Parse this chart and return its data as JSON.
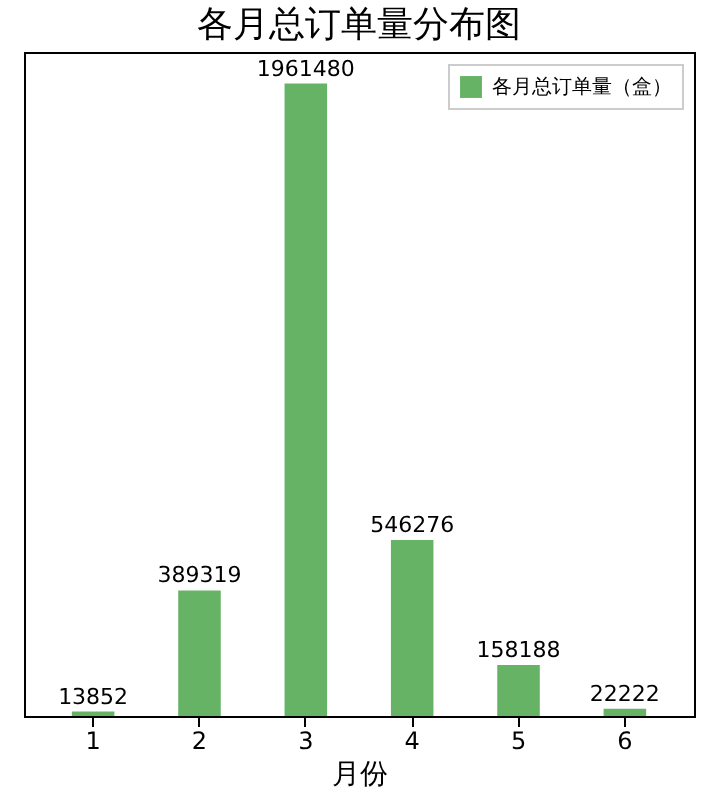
{
  "chart_data": {
    "type": "bar",
    "title": "各月总订单量分布图",
    "xlabel": "月份",
    "categories": [
      "1",
      "2",
      "3",
      "4",
      "5",
      "6"
    ],
    "series": [
      {
        "name": "各月总订单量（盒）",
        "color": "#66b366",
        "values": [
          13852,
          389319,
          1961480,
          546276,
          158188,
          22222
        ]
      }
    ],
    "data_labels": true,
    "legend": "top right",
    "tick_labels": "x",
    "grid": false
  }
}
